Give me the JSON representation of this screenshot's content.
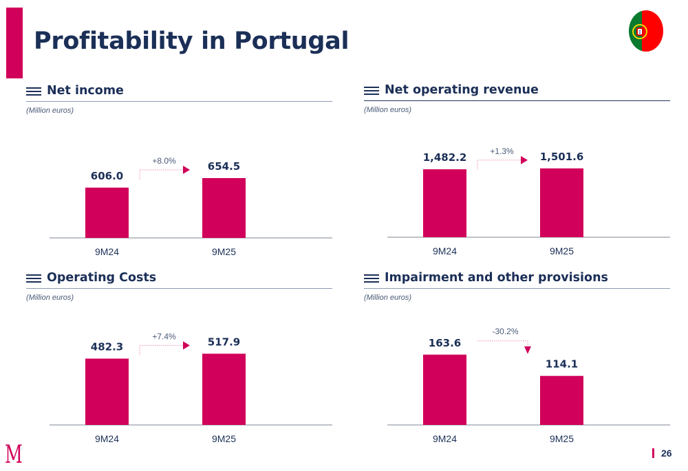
{
  "page": {
    "title": "Profitability in Portugal",
    "page_number": "26",
    "logo_letter": "M",
    "flag": "portugal-flag-icon",
    "colors": {
      "accent": "#d1005a",
      "navy": "#1b2f57",
      "axis": "#a9adb5",
      "muted_text": "#4a5a78"
    }
  },
  "chart_data": [
    {
      "type": "bar",
      "title": "Net income",
      "unit_label": "(Million euros)",
      "categories": [
        "9M24",
        "9M25"
      ],
      "values": [
        606.0,
        654.5
      ],
      "value_labels": [
        "606.0",
        "654.5"
      ],
      "change_label": "+8.0%",
      "change_direction": "up",
      "xlabel": "",
      "ylabel": "",
      "ylim": [
        350,
        700
      ],
      "grid": false
    },
    {
      "type": "bar",
      "title": "Net operating revenue",
      "unit_label": "(Million euros)",
      "categories": [
        "9M24",
        "9M25"
      ],
      "values": [
        1482.2,
        1501.6
      ],
      "value_labels": [
        "1,482.2",
        "1,501.6"
      ],
      "change_label": "+1.3%",
      "change_direction": "up",
      "xlabel": "",
      "ylabel": "",
      "ylim": [
        0,
        1500
      ],
      "grid": false
    },
    {
      "type": "bar",
      "title": "Operating Costs",
      "unit_label": "(Million euros)",
      "categories": [
        "9M24",
        "9M25"
      ],
      "values": [
        482.3,
        517.9
      ],
      "value_labels": [
        "482.3",
        "517.9"
      ],
      "change_label": "+7.4%",
      "change_direction": "up",
      "xlabel": "",
      "ylabel": "",
      "ylim": [
        0,
        500
      ],
      "grid": false
    },
    {
      "type": "bar",
      "title": "Impairment and other provisions",
      "unit_label": "(Million euros)",
      "categories": [
        "9M24",
        "9M25"
      ],
      "values": [
        163.6,
        114.1
      ],
      "value_labels": [
        "163.6",
        "114.1"
      ],
      "change_label": "-30.2%",
      "change_direction": "down",
      "xlabel": "",
      "ylabel": "",
      "ylim": [
        0,
        160
      ],
      "grid": false
    }
  ]
}
